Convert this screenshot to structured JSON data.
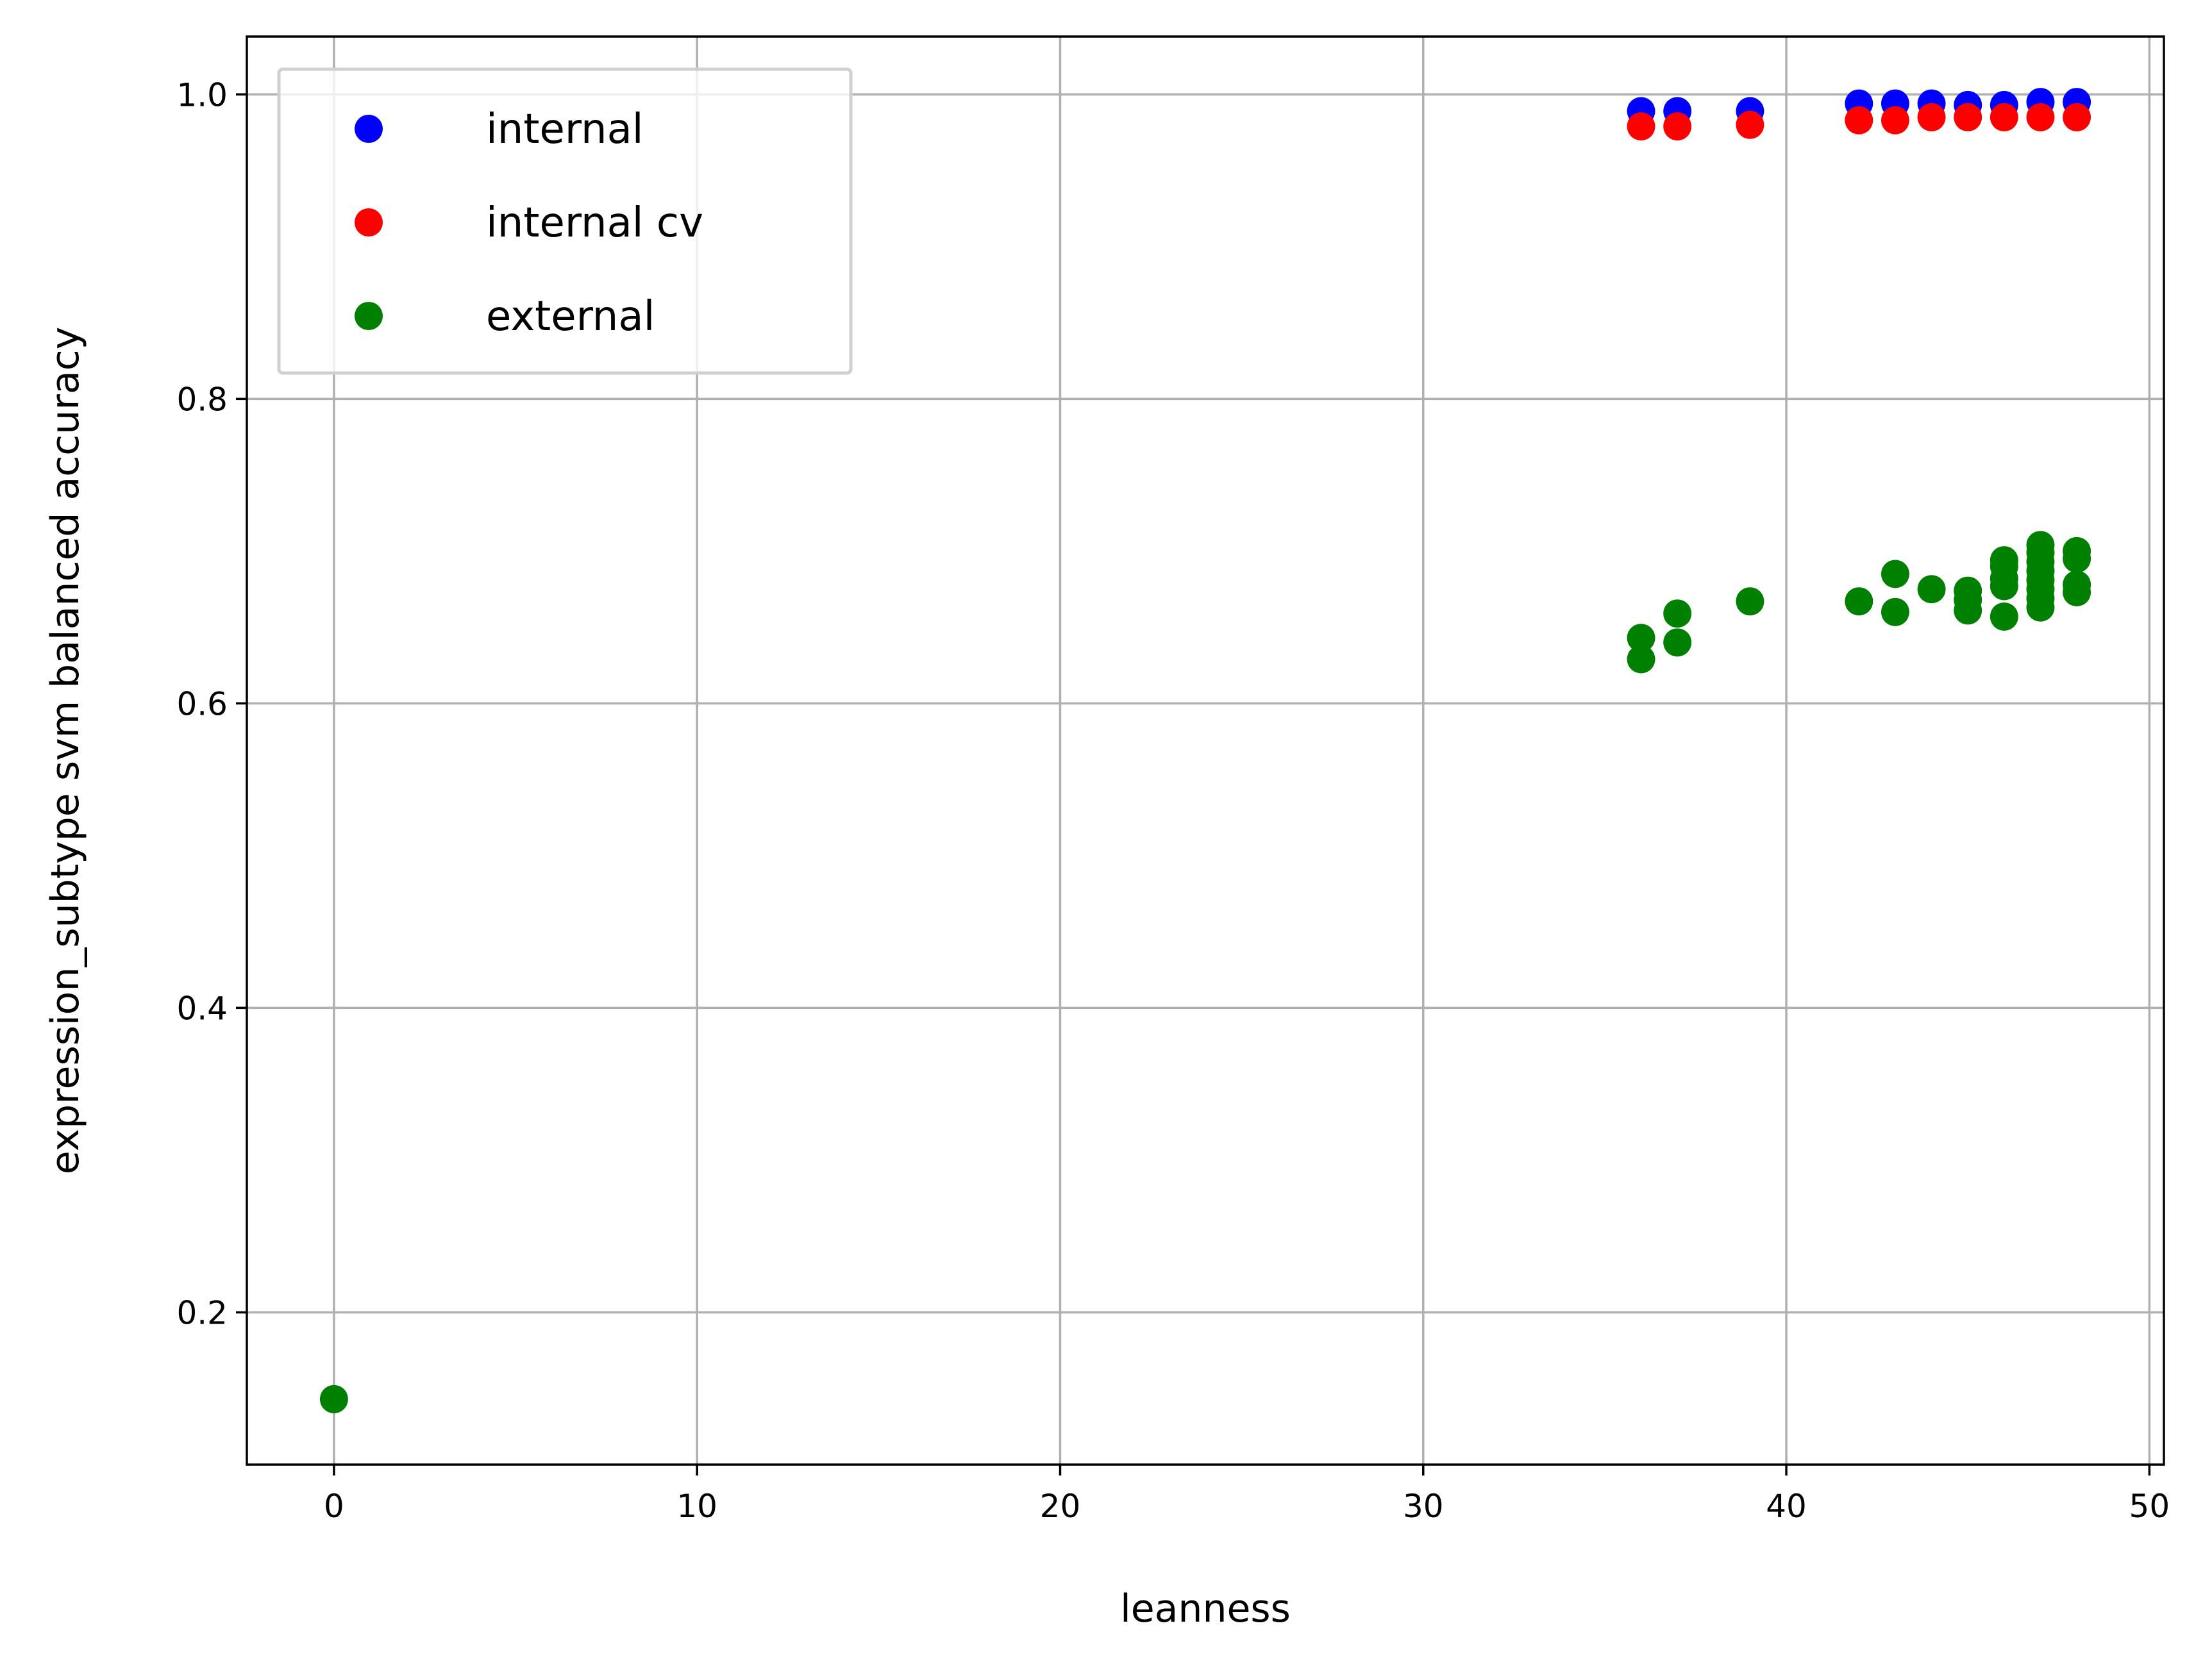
{
  "chart_data": {
    "type": "scatter",
    "title": "",
    "xlabel": "leanness",
    "ylabel": "expression_subtype svm balanced accuracy",
    "xlim": [
      -2.4,
      50.4
    ],
    "ylim": [
      0.1,
      1.038
    ],
    "x_ticks": [
      0,
      10,
      20,
      30,
      40,
      50
    ],
    "y_ticks": [
      0.2,
      0.4,
      0.6,
      0.8,
      1.0
    ],
    "x_tick_labels": [
      "0",
      "10",
      "20",
      "30",
      "40",
      "50"
    ],
    "y_tick_labels": [
      "0.2",
      "0.4",
      "0.6",
      "0.8",
      "1.0"
    ],
    "grid": true,
    "legend_position": "top-left",
    "series": [
      {
        "name": "internal",
        "color": "#0000ff",
        "points": [
          [
            36,
            0.989
          ],
          [
            37,
            0.989
          ],
          [
            39,
            0.989
          ],
          [
            42,
            0.994
          ],
          [
            43,
            0.994
          ],
          [
            44,
            0.994
          ],
          [
            45,
            0.993
          ],
          [
            46,
            0.993
          ],
          [
            47,
            0.995
          ],
          [
            48,
            0.995
          ]
        ]
      },
      {
        "name": "internal cv",
        "color": "#ff0000",
        "points": [
          [
            36,
            0.979
          ],
          [
            37,
            0.979
          ],
          [
            39,
            0.98
          ],
          [
            42,
            0.983
          ],
          [
            43,
            0.983
          ],
          [
            44,
            0.985
          ],
          [
            45,
            0.985
          ],
          [
            46,
            0.985
          ],
          [
            47,
            0.985
          ],
          [
            48,
            0.985
          ]
        ]
      },
      {
        "name": "external",
        "color": "#008000",
        "points": [
          [
            0,
            0.143
          ],
          [
            36,
            0.629
          ],
          [
            36,
            0.643
          ],
          [
            37,
            0.64
          ],
          [
            37,
            0.659
          ],
          [
            39,
            0.667
          ],
          [
            42,
            0.667
          ],
          [
            43,
            0.66
          ],
          [
            43,
            0.685
          ],
          [
            44,
            0.675
          ],
          [
            45,
            0.661
          ],
          [
            45,
            0.668
          ],
          [
            45,
            0.674
          ],
          [
            46,
            0.657
          ],
          [
            46,
            0.677
          ],
          [
            46,
            0.682
          ],
          [
            46,
            0.69
          ],
          [
            46,
            0.694
          ],
          [
            47,
            0.663
          ],
          [
            47,
            0.669
          ],
          [
            47,
            0.675
          ],
          [
            47,
            0.681
          ],
          [
            47,
            0.687
          ],
          [
            47,
            0.693
          ],
          [
            47,
            0.699
          ],
          [
            47,
            0.704
          ],
          [
            48,
            0.673
          ],
          [
            48,
            0.678
          ],
          [
            48,
            0.695
          ],
          [
            48,
            0.7
          ]
        ]
      }
    ]
  }
}
